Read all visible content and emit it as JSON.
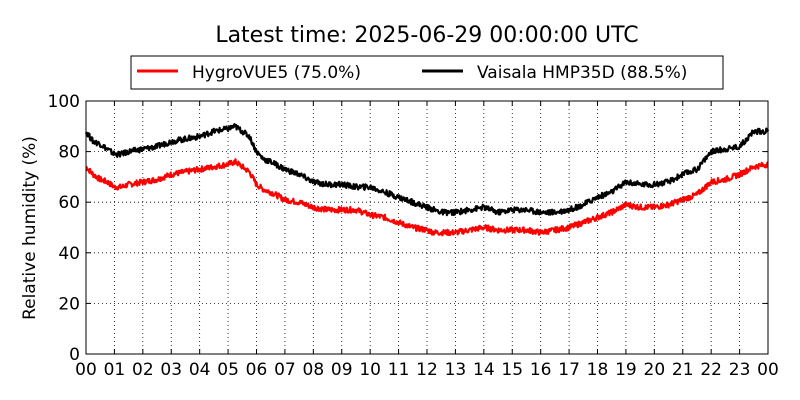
{
  "chart_data": {
    "type": "line",
    "title": "Latest time: 2025-06-29 00:00:00 UTC",
    "xlabel": "",
    "ylabel": "Relative humidity (%)",
    "xlim": [
      0,
      24
    ],
    "ylim": [
      0,
      100
    ],
    "x_ticks": [
      0,
      1,
      2,
      3,
      4,
      5,
      6,
      7,
      8,
      9,
      10,
      11,
      12,
      13,
      14,
      15,
      16,
      17,
      18,
      19,
      20,
      21,
      22,
      23,
      24
    ],
    "x_tick_labels": [
      "00",
      "01",
      "02",
      "03",
      "04",
      "05",
      "06",
      "07",
      "08",
      "09",
      "10",
      "11",
      "12",
      "13",
      "14",
      "15",
      "16",
      "17",
      "18",
      "19",
      "20",
      "21",
      "22",
      "23",
      "00"
    ],
    "y_ticks": [
      0,
      20,
      40,
      60,
      80,
      100
    ],
    "grid": true,
    "legend_position": "top",
    "series": [
      {
        "name": "HygroVUE5 (75.0%)",
        "color": "#ff0000",
        "x": [
          0,
          0.25,
          0.5,
          0.75,
          1,
          1.25,
          1.5,
          2,
          2.5,
          3,
          3.5,
          4,
          4.5,
          5,
          5.25,
          5.5,
          5.75,
          6,
          6.25,
          6.5,
          7,
          7.5,
          8,
          8.5,
          9,
          9.5,
          10,
          10.5,
          11,
          11.5,
          12,
          12.25,
          12.5,
          13,
          13.5,
          14,
          14.5,
          15,
          15.5,
          16,
          16.5,
          17,
          17.5,
          18,
          18.5,
          19,
          19.5,
          20,
          20.5,
          21,
          21.5,
          22,
          22.5,
          23,
          23.5,
          24
        ],
        "values": [
          74,
          71,
          69,
          68,
          66,
          66,
          67,
          68,
          69,
          71,
          72,
          73,
          74,
          75,
          76,
          74,
          72,
          67,
          65,
          64,
          61,
          60,
          58,
          57,
          57,
          57,
          55,
          54,
          52,
          50,
          49,
          48,
          48,
          48,
          49,
          50,
          49,
          49,
          49,
          48,
          49,
          50,
          52,
          54,
          56,
          59,
          58,
          58,
          59,
          61,
          63,
          68,
          69,
          71,
          74,
          75
        ]
      },
      {
        "name": "Vaisala HMP35D (88.5%)",
        "color": "#000000",
        "x": [
          0,
          0.25,
          0.5,
          0.75,
          1,
          1.25,
          1.5,
          2,
          2.5,
          3,
          3.5,
          4,
          4.5,
          5,
          5.25,
          5.5,
          5.75,
          6,
          6.25,
          6.5,
          7,
          7.5,
          8,
          8.5,
          9,
          9.5,
          10,
          10.5,
          11,
          11.5,
          12,
          12.25,
          12.5,
          13,
          13.5,
          14,
          14.5,
          15,
          15.5,
          16,
          16.5,
          17,
          17.5,
          18,
          18.5,
          19,
          19.5,
          20,
          20.5,
          21,
          21.5,
          22,
          22.5,
          23,
          23.5,
          24
        ],
        "values": [
          88,
          84,
          83,
          81,
          79,
          79,
          80,
          81,
          82,
          84,
          85,
          86,
          88,
          89,
          90,
          88,
          86,
          80,
          77,
          76,
          73,
          71,
          68,
          67,
          67,
          66,
          66,
          64,
          62,
          60,
          58,
          57,
          56,
          56,
          57,
          58,
          56,
          57,
          57,
          56,
          56,
          57,
          59,
          62,
          64,
          68,
          67,
          67,
          68,
          71,
          73,
          80,
          81,
          82,
          88,
          88
        ]
      }
    ]
  }
}
